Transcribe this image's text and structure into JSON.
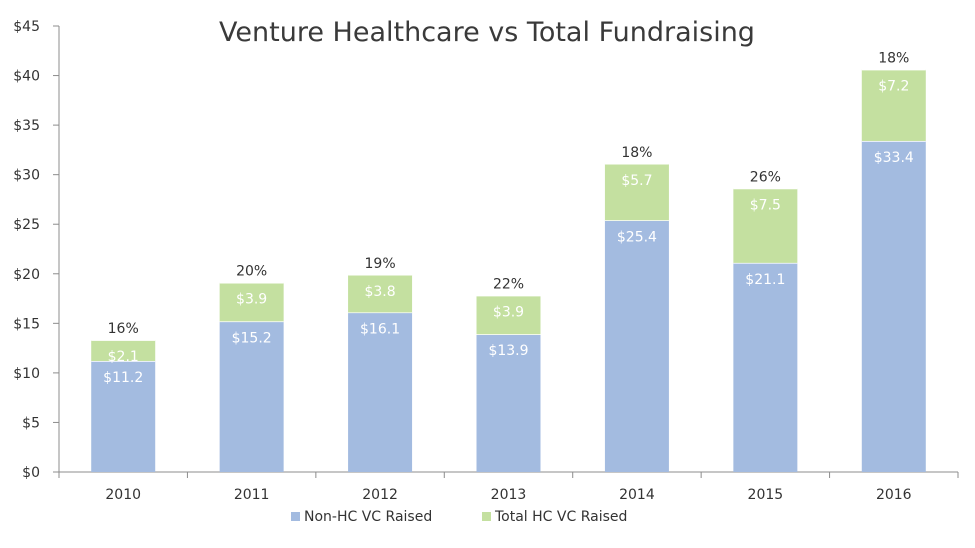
{
  "chart_data": {
    "type": "bar",
    "stacked": true,
    "title": "Venture Healthcare vs Total Fundraising",
    "categories": [
      "2010",
      "2011",
      "2012",
      "2013",
      "2014",
      "2015",
      "2016"
    ],
    "series": [
      {
        "name": "Non-HC VC Raised",
        "values": [
          11.2,
          15.2,
          16.1,
          13.9,
          25.4,
          21.1,
          33.4
        ],
        "labels": [
          "$11.2",
          "$15.2",
          "$16.1",
          "$13.9",
          "$25.4",
          "$21.1",
          "$33.4"
        ],
        "color": "#a3bbe0"
      },
      {
        "name": "Total HC VC Raised",
        "values": [
          2.1,
          3.9,
          3.8,
          3.9,
          5.7,
          7.5,
          7.2
        ],
        "labels": [
          "$2.1",
          "$3.9",
          "$3.8",
          "$3.9",
          "$5.7",
          "$7.5",
          "$7.2"
        ],
        "color": "#c4e0a0"
      }
    ],
    "percent_labels": [
      "16%",
      "20%",
      "19%",
      "22%",
      "18%",
      "26%",
      "18%"
    ],
    "ylim": [
      0,
      45
    ],
    "yticks": [
      0,
      5,
      10,
      15,
      20,
      25,
      30,
      35,
      40,
      45
    ],
    "ytick_labels": [
      "$0",
      "$5",
      "$10",
      "$15",
      "$20",
      "$25",
      "$30",
      "$35",
      "$40",
      "$45"
    ],
    "xlabel": "",
    "ylabel": "",
    "grid": false,
    "legend": "bottom"
  }
}
